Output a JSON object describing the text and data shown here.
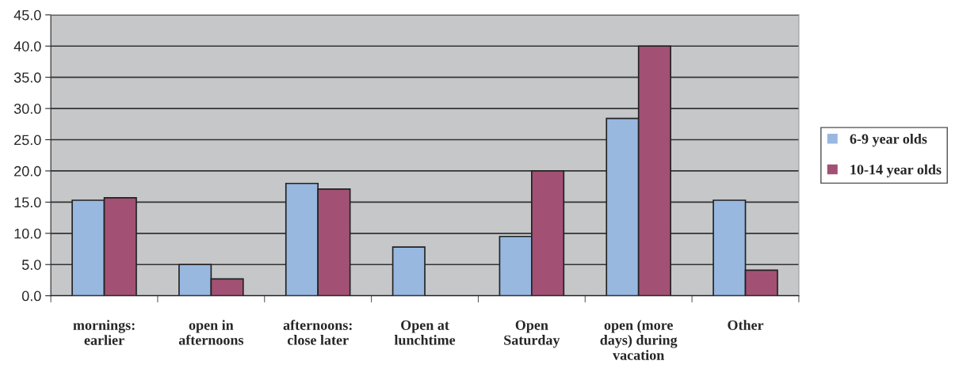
{
  "chart_data": {
    "type": "bar",
    "categories": [
      "mornings:\nearlier",
      "open in\nafternoons",
      "afternoons:\nclose later",
      "Open at\nlunchtime",
      "Open\nSaturday",
      "open (more\ndays) during\nvacation",
      "Other"
    ],
    "series": [
      {
        "name": "6-9 year olds",
        "color": "#98b8e0",
        "values": [
          15.3,
          5.0,
          18.0,
          7.8,
          9.5,
          28.4,
          15.3
        ]
      },
      {
        "name": "10-14 year olds",
        "color": "#a25174",
        "values": [
          15.7,
          2.7,
          17.1,
          null,
          20.0,
          40.0,
          4.1
        ]
      }
    ],
    "ylim": [
      0,
      45
    ],
    "yticks": [
      {
        "value": 0,
        "label": "0.0"
      },
      {
        "value": 5,
        "label": "5.0"
      },
      {
        "value": 10,
        "label": "10.0"
      },
      {
        "value": 15,
        "label": "15.0"
      },
      {
        "value": 20,
        "label": "20.0"
      },
      {
        "value": 25,
        "label": "25.0"
      },
      {
        "value": 30,
        "label": "30.0"
      },
      {
        "value": 35,
        "label": "35.0"
      },
      {
        "value": 40,
        "label": "40.0"
      },
      {
        "value": 45,
        "label": "45.0"
      }
    ],
    "grid": "y",
    "legend": "right"
  }
}
